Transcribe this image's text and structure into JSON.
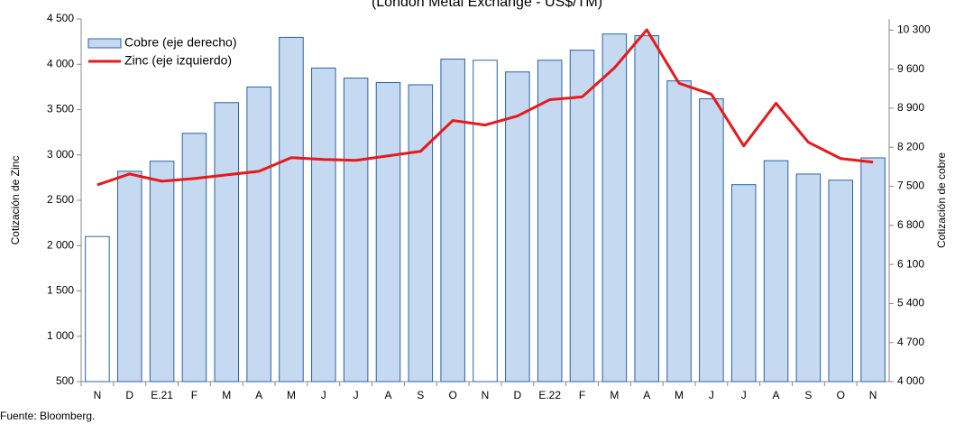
{
  "chart_data": {
    "type": "bar-line",
    "title": "(London Metal Exchange - US$/TM)",
    "ylabel": "Cotización de Zinc",
    "y2label": "Cotización de cobre",
    "source": "Fuente: Bloomberg.",
    "categories": [
      "N",
      "D",
      "E.21",
      "F",
      "M",
      "A",
      "M",
      "J",
      "J",
      "A",
      "S",
      "O",
      "N",
      "D",
      "E.22",
      "F",
      "M",
      "A",
      "M",
      "J",
      "J",
      "A",
      "S",
      "O",
      "N"
    ],
    "series": [
      {
        "name": "Cobre (eje derecho)",
        "type": "bar",
        "axis": "y2",
        "color": "#c5d9f1",
        "edge_color": "#2a62a8",
        "point_colors": [
          "#ffffff",
          "#c5d9f1",
          "#c5d9f1",
          "#c5d9f1",
          "#c5d9f1",
          "#c5d9f1",
          "#c5d9f1",
          "#c5d9f1",
          "#c5d9f1",
          "#c5d9f1",
          "#c5d9f1",
          "#c5d9f1",
          "#ffffff",
          "#c5d9f1",
          "#c5d9f1",
          "#c5d9f1",
          "#c5d9f1",
          "#c5d9f1",
          "#c5d9f1",
          "#c5d9f1",
          "#c5d9f1",
          "#c5d9f1",
          "#c5d9f1",
          "#c5d9f1",
          "#c5d9f1"
        ],
        "values": [
          6600,
          7770,
          7950,
          8450,
          9000,
          9280,
          10170,
          9620,
          9440,
          9360,
          9320,
          9780,
          9760,
          9550,
          9760,
          9940,
          10230,
          10200,
          9390,
          9070,
          7530,
          7960,
          7720,
          7610,
          8010
        ]
      },
      {
        "name": "Zinc (eje izquierdo)",
        "type": "line",
        "color": "#e8191a",
        "values": [
          2670,
          2790,
          2710,
          2740,
          2780,
          2820,
          2970,
          2950,
          2940,
          2990,
          3040,
          3380,
          3330,
          3430,
          3610,
          3640,
          3960,
          4380,
          3790,
          3670,
          3100,
          3570,
          3140,
          2960,
          2920
        ]
      }
    ],
    "ylim": [
      500,
      4500
    ],
    "yticks": [
      500,
      {
        "value": 1000,
        "label": "1 000"
      },
      {
        "value": 1500,
        "label": "1 500"
      },
      {
        "value": 2000,
        "label": "2 000"
      },
      {
        "value": 2500,
        "label": "2 500"
      },
      {
        "value": 3000,
        "label": "3 000"
      },
      {
        "value": 3500,
        "label": "3 500"
      },
      {
        "value": 4000,
        "label": "4 000"
      },
      {
        "value": 4500,
        "label": "4 500"
      }
    ],
    "y2lim": [
      4000,
      10500
    ],
    "y2ticks": [
      {
        "value": 4000,
        "label": "4 000"
      },
      {
        "value": 4700,
        "label": "4 700"
      },
      {
        "value": 5400,
        "label": "5 400"
      },
      {
        "value": 6100,
        "label": "6 100"
      },
      {
        "value": 6800,
        "label": "6 800"
      },
      {
        "value": 7500,
        "label": "7 500"
      },
      {
        "value": 8200,
        "label": "8 200"
      },
      {
        "value": 8900,
        "label": "8 900"
      },
      {
        "value": 9600,
        "label": "9 600"
      },
      {
        "value": 10300,
        "label": "10 300"
      }
    ],
    "legend": "upper left",
    "grid": false
  }
}
